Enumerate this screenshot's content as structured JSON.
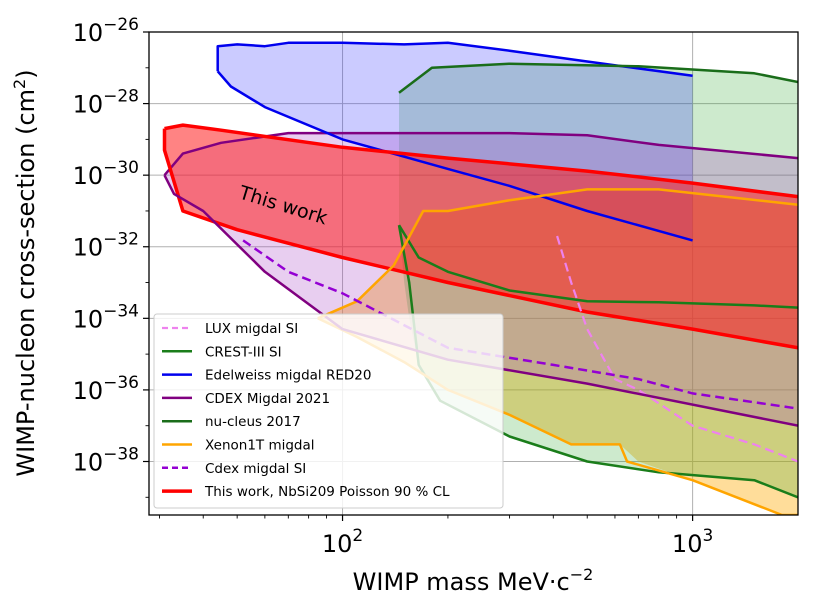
{
  "chart_data": {
    "type": "line",
    "title": "",
    "xlabel": "WIMP mass MeV·c",
    "xlabel_exp": "−2",
    "ylabel": "WIMP-nucleon cross-section (cm",
    "ylabel_sup": "2",
    "ylabel_close": ")",
    "x_scale": "log",
    "y_scale": "log",
    "xlim": [
      28,
      2000
    ],
    "ylim": [
      3.2e-40,
      1e-26
    ],
    "grid": true,
    "x_ticks": [
      {
        "value": 100,
        "base": "10",
        "exp": "2"
      },
      {
        "value": 1000,
        "base": "10",
        "exp": "3"
      }
    ],
    "y_ticks": [
      {
        "value": 1e-26,
        "base": "10",
        "exp": "−26"
      },
      {
        "value": 1e-28,
        "base": "10",
        "exp": "−28"
      },
      {
        "value": 1e-30,
        "base": "10",
        "exp": "−30"
      },
      {
        "value": 1e-32,
        "base": "10",
        "exp": "−32"
      },
      {
        "value": 1e-34,
        "base": "10",
        "exp": "−34"
      },
      {
        "value": 1e-36,
        "base": "10",
        "exp": "−36"
      },
      {
        "value": 1e-38,
        "base": "10",
        "exp": "−38"
      }
    ],
    "legend_position": "lower-left",
    "annotation": {
      "text": "This work",
      "x": 45,
      "y": 1.5e-31,
      "rotation_deg": 17
    },
    "fills": [
      {
        "name": "Xenon1T region",
        "color": "#ffb41e",
        "opacity": 0.45,
        "upper": [
          [
            85,
            1e-34
          ],
          [
            110,
            3e-34
          ],
          [
            140,
            3e-33
          ],
          [
            170,
            1e-31
          ],
          [
            200,
            1e-31
          ],
          [
            300,
            2e-31
          ],
          [
            500,
            4e-31
          ],
          [
            800,
            4e-31
          ],
          [
            2000,
            1.5e-31
          ]
        ],
        "lower": [
          [
            2000,
            3.2e-40
          ],
          [
            1800,
            3.2e-40
          ],
          [
            1000,
            3e-39
          ],
          [
            700,
            1e-38
          ],
          [
            620,
            3e-38
          ],
          [
            450,
            3e-38
          ],
          [
            300,
            2e-37
          ],
          [
            200,
            1e-36
          ],
          [
            150,
            6e-36
          ],
          [
            110,
            3e-35
          ],
          [
            85,
            1e-34
          ]
        ]
      },
      {
        "name": "CREST-III region",
        "color": "#1a9e1a",
        "opacity": 0.22,
        "upper": [
          [
            145,
            2e-28
          ],
          [
            180,
            1e-27
          ],
          [
            300,
            1.3e-27
          ],
          [
            700,
            1.1e-27
          ],
          [
            1500,
            7e-28
          ],
          [
            2000,
            4e-28
          ]
        ],
        "lower": [
          [
            2000,
            1e-39
          ],
          [
            1500,
            3e-39
          ],
          [
            800,
            5e-39
          ],
          [
            500,
            1e-38
          ],
          [
            300,
            5e-38
          ],
          [
            190,
            5e-37
          ],
          [
            165,
            5e-36
          ],
          [
            155,
            1e-34
          ],
          [
            150,
            1e-33
          ],
          [
            145,
            4e-32
          ]
        ]
      },
      {
        "name": "Edelweiss region",
        "color": "#3030ff",
        "opacity": 0.25,
        "upper": [
          [
            44,
            4e-27
          ],
          [
            50,
            4.5e-27
          ],
          [
            60,
            4e-27
          ],
          [
            70,
            5e-27
          ],
          [
            100,
            5e-27
          ],
          [
            150,
            4.5e-27
          ],
          [
            200,
            5e-27
          ],
          [
            300,
            3e-27
          ],
          [
            500,
            1.5e-27
          ],
          [
            1000,
            6e-28
          ]
        ],
        "lower": [
          [
            1000,
            1.5e-32
          ],
          [
            500,
            1e-31
          ],
          [
            300,
            5e-31
          ],
          [
            200,
            1.5e-30
          ],
          [
            100,
            1e-29
          ],
          [
            60,
            8e-29
          ],
          [
            48,
            3e-28
          ],
          [
            44,
            8e-28
          ]
        ]
      },
      {
        "name": "CDEX 2021 region",
        "color": "#a33cc4",
        "opacity": 0.25,
        "upper": [
          [
            31,
            1e-30
          ],
          [
            35,
            4e-30
          ],
          [
            45,
            8e-30
          ],
          [
            70,
            1.5e-29
          ],
          [
            150,
            1.5e-29
          ],
          [
            300,
            1.5e-29
          ],
          [
            500,
            1.3e-29
          ],
          [
            800,
            7e-30
          ],
          [
            2000,
            3e-30
          ]
        ],
        "lower": [
          [
            2000,
            1e-37
          ],
          [
            500,
            1.5e-36
          ],
          [
            200,
            7e-36
          ],
          [
            100,
            5e-35
          ],
          [
            60,
            2e-33
          ],
          [
            40,
            1e-31
          ],
          [
            33,
            3e-31
          ],
          [
            31,
            1e-30
          ]
        ]
      },
      {
        "name": "This work region",
        "color": "#ff1d1d",
        "opacity": 0.55,
        "upper": [
          [
            31,
            2e-29
          ],
          [
            35,
            2.5e-29
          ],
          [
            45,
            1.8e-29
          ],
          [
            100,
            6e-30
          ],
          [
            200,
            3e-30
          ],
          [
            500,
            1.3e-30
          ],
          [
            1000,
            6e-31
          ],
          [
            2000,
            2.5e-31
          ]
        ],
        "lower": [
          [
            2000,
            1.5e-35
          ],
          [
            1000,
            5e-35
          ],
          [
            500,
            1.5e-34
          ],
          [
            200,
            1e-33
          ],
          [
            100,
            5e-33
          ],
          [
            50,
            3e-32
          ],
          [
            35,
            1e-31
          ],
          [
            31,
            5e-30
          ]
        ]
      }
    ],
    "series": [
      {
        "name": "LUX migdal SI",
        "color": "#ee82ee",
        "dash": "9,5",
        "width": 2.2,
        "points": [
          [
            410,
            2e-32
          ],
          [
            450,
            1e-33
          ],
          [
            500,
            5e-35
          ],
          [
            600,
            2e-36
          ],
          [
            700,
            1e-36
          ],
          [
            1000,
            1e-37
          ],
          [
            1500,
            3e-38
          ],
          [
            2000,
            1e-38
          ]
        ]
      },
      {
        "name": "CREST-III SI",
        "color": "#1a7d1a",
        "dash": "",
        "width": 2.5,
        "points": [
          [
            145,
            4e-32
          ],
          [
            165,
            5e-33
          ],
          [
            200,
            2e-33
          ],
          [
            300,
            6e-34
          ],
          [
            500,
            3e-34
          ],
          [
            800,
            2.8e-34
          ],
          [
            1500,
            2.3e-34
          ],
          [
            2000,
            2e-34
          ]
        ]
      },
      {
        "name": "Edelweiss migdal RED20",
        "color": "#0000ee",
        "dash": "",
        "width": 2.5,
        "points": [
          [
            44,
            8e-28
          ],
          [
            48,
            3e-28
          ],
          [
            60,
            8e-29
          ],
          [
            100,
            1e-29
          ],
          [
            200,
            1.5e-30
          ],
          [
            300,
            5e-31
          ],
          [
            500,
            1e-31
          ],
          [
            1000,
            1.5e-32
          ]
        ]
      },
      {
        "name": "CDEX Migdal 2021",
        "color": "#800080",
        "dash": "",
        "width": 2.5,
        "points": [
          [
            31,
            1e-30
          ],
          [
            33,
            3e-31
          ],
          [
            40,
            1e-31
          ],
          [
            60,
            2e-33
          ],
          [
            100,
            5e-35
          ],
          [
            200,
            7e-36
          ],
          [
            500,
            1.5e-36
          ],
          [
            2000,
            1e-37
          ]
        ]
      },
      {
        "name": "nu-cleus 2017",
        "color": "#1a6d1a",
        "dash": "",
        "width": 2.5,
        "points": [
          [
            145,
            2e-28
          ],
          [
            180,
            1e-27
          ],
          [
            300,
            1.3e-27
          ],
          [
            700,
            1.1e-27
          ],
          [
            1500,
            7e-28
          ],
          [
            2000,
            4e-28
          ]
        ]
      },
      {
        "name": "Xenon1T migdal",
        "color": "#ffa500",
        "dash": "",
        "width": 2.5,
        "points": [
          [
            85,
            1e-34
          ],
          [
            110,
            3e-34
          ],
          [
            140,
            3e-33
          ],
          [
            170,
            1e-31
          ],
          [
            200,
            1e-31
          ],
          [
            300,
            2e-31
          ],
          [
            500,
            4e-31
          ],
          [
            800,
            4e-31
          ],
          [
            2000,
            1.5e-31
          ]
        ]
      },
      {
        "name": "Cdex migdal SI",
        "color": "#9400d3",
        "dash": "9,5",
        "width": 2.5,
        "points": [
          [
            52,
            1.5e-32
          ],
          [
            70,
            2e-33
          ],
          [
            100,
            5e-34
          ],
          [
            200,
            1.5e-35
          ],
          [
            400,
            5e-36
          ],
          [
            700,
            2e-36
          ],
          [
            1000,
            8e-37
          ],
          [
            2000,
            3e-37
          ]
        ]
      },
      {
        "name": "This work, NbSi209 Poisson 90 % CL",
        "color": "#ff0000",
        "dash": "",
        "width": 3.5,
        "points": [
          [
            31,
            2e-29
          ],
          [
            35,
            2.5e-29
          ],
          [
            45,
            1.8e-29
          ],
          [
            100,
            6e-30
          ],
          [
            200,
            3e-30
          ],
          [
            500,
            1.3e-30
          ],
          [
            1000,
            6e-31
          ],
          [
            2000,
            2.5e-31
          ]
        ]
      }
    ],
    "extra_lines": [
      {
        "name": "Edelweiss upper",
        "color": "#0000ee",
        "width": 2.5,
        "points": [
          [
            44,
            8e-28
          ],
          [
            44,
            4e-27
          ],
          [
            50,
            4.5e-27
          ],
          [
            60,
            4e-27
          ],
          [
            70,
            5e-27
          ],
          [
            100,
            5e-27
          ],
          [
            150,
            4.5e-27
          ],
          [
            200,
            5e-27
          ],
          [
            300,
            3e-27
          ],
          [
            500,
            1.5e-27
          ],
          [
            1000,
            6e-28
          ]
        ]
      },
      {
        "name": "CREST-III lower",
        "color": "#1a7d1a",
        "width": 2.5,
        "points": [
          [
            145,
            4e-32
          ],
          [
            155,
            1e-33
          ],
          [
            165,
            5e-36
          ],
          [
            190,
            5e-37
          ],
          [
            300,
            5e-38
          ],
          [
            500,
            1e-38
          ],
          [
            800,
            5e-39
          ],
          [
            1500,
            3e-39
          ],
          [
            2000,
            1e-39
          ]
        ]
      },
      {
        "name": "CDEX upper",
        "color": "#800080",
        "width": 2.5,
        "points": [
          [
            31,
            1e-30
          ],
          [
            35,
            4e-30
          ],
          [
            45,
            8e-30
          ],
          [
            70,
            1.5e-29
          ],
          [
            150,
            1.5e-29
          ],
          [
            300,
            1.5e-29
          ],
          [
            500,
            1.3e-29
          ],
          [
            800,
            7e-30
          ],
          [
            2000,
            3e-30
          ]
        ]
      },
      {
        "name": "This work lower",
        "color": "#ff0000",
        "width": 3.5,
        "points": [
          [
            31,
            2e-29
          ],
          [
            31,
            5e-30
          ],
          [
            35,
            1e-31
          ],
          [
            50,
            3e-32
          ],
          [
            100,
            5e-33
          ],
          [
            200,
            1e-33
          ],
          [
            500,
            1.5e-34
          ],
          [
            1000,
            5e-35
          ],
          [
            2000,
            1.5e-35
          ]
        ]
      },
      {
        "name": "Xenon1T lower",
        "color": "#ffa500",
        "width": 2.5,
        "points": [
          [
            85,
            1e-34
          ],
          [
            110,
            3e-35
          ],
          [
            150,
            6e-36
          ],
          [
            200,
            1e-36
          ],
          [
            300,
            2e-37
          ],
          [
            450,
            3e-38
          ],
          [
            620,
            3e-38
          ],
          [
            650,
            1e-38
          ],
          [
            1000,
            3e-39
          ],
          [
            1800,
            3.2e-40
          ],
          [
            2000,
            3.2e-40
          ]
        ]
      }
    ]
  }
}
